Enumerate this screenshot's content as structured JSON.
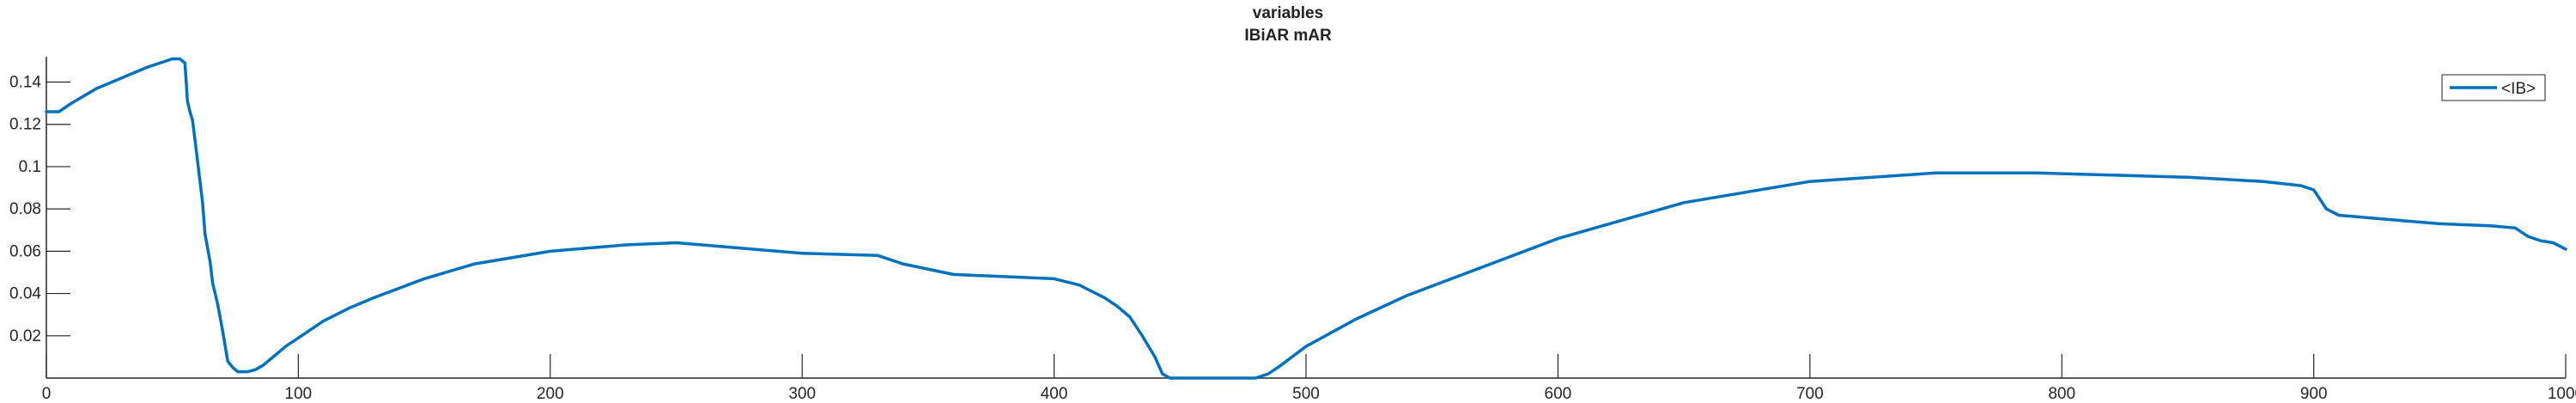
{
  "chart_data": {
    "type": "line",
    "title": "variables",
    "subtitle": "IBiAR mAR",
    "xlabel": "",
    "ylabel": "",
    "xlim": [
      0,
      1000
    ],
    "ylim": [
      0,
      0.152
    ],
    "xticks": [
      0,
      100,
      200,
      300,
      400,
      500,
      600,
      700,
      800,
      900,
      1000
    ],
    "xtick_labels": [
      "0",
      "100",
      "200",
      "300",
      "400",
      "500",
      "600",
      "700",
      "800",
      "900",
      "1000"
    ],
    "yticks": [
      0.02,
      0.04,
      0.06,
      0.08,
      0.1,
      0.12,
      0.14
    ],
    "ytick_labels": [
      "0.02",
      "0.04",
      "0.06",
      "0.08",
      "0.1",
      "0.12",
      "0.14"
    ],
    "grid": false,
    "legend_position": "top-right",
    "series": [
      {
        "name": "<IB>",
        "color": "#0072BD",
        "x": [
          0,
          5,
          10,
          20,
          30,
          40,
          50,
          53,
          55,
          56,
          57,
          58,
          60,
          62,
          63,
          65,
          66,
          68,
          70,
          72,
          74,
          76,
          78,
          80,
          83,
          86,
          90,
          95,
          100,
          110,
          120,
          130,
          150,
          170,
          200,
          230,
          250,
          270,
          300,
          330,
          340,
          360,
          400,
          410,
          420,
          425,
          430,
          435,
          440,
          443,
          446,
          450,
          460,
          470,
          480,
          485,
          490,
          500,
          520,
          540,
          560,
          600,
          650,
          700,
          750,
          790,
          820,
          850,
          880,
          895,
          900,
          905,
          910,
          930,
          950,
          970,
          980,
          985,
          990,
          995,
          1000
        ],
        "y": [
          0.126,
          0.126,
          0.13,
          0.137,
          0.142,
          0.147,
          0.151,
          0.151,
          0.149,
          0.131,
          0.126,
          0.122,
          0.103,
          0.083,
          0.068,
          0.055,
          0.045,
          0.035,
          0.022,
          0.008,
          0.005,
          0.003,
          0.003,
          0.003,
          0.004,
          0.006,
          0.01,
          0.015,
          0.019,
          0.027,
          0.033,
          0.038,
          0.047,
          0.054,
          0.06,
          0.063,
          0.064,
          0.062,
          0.059,
          0.058,
          0.054,
          0.049,
          0.047,
          0.044,
          0.038,
          0.034,
          0.029,
          0.02,
          0.01,
          0.002,
          0.0,
          0.0,
          0.0,
          0.0,
          0.0,
          0.002,
          0.006,
          0.015,
          0.028,
          0.039,
          0.048,
          0.066,
          0.083,
          0.093,
          0.097,
          0.097,
          0.096,
          0.095,
          0.093,
          0.091,
          0.089,
          0.08,
          0.077,
          0.075,
          0.073,
          0.072,
          0.071,
          0.067,
          0.065,
          0.064,
          0.061
        ]
      }
    ]
  }
}
